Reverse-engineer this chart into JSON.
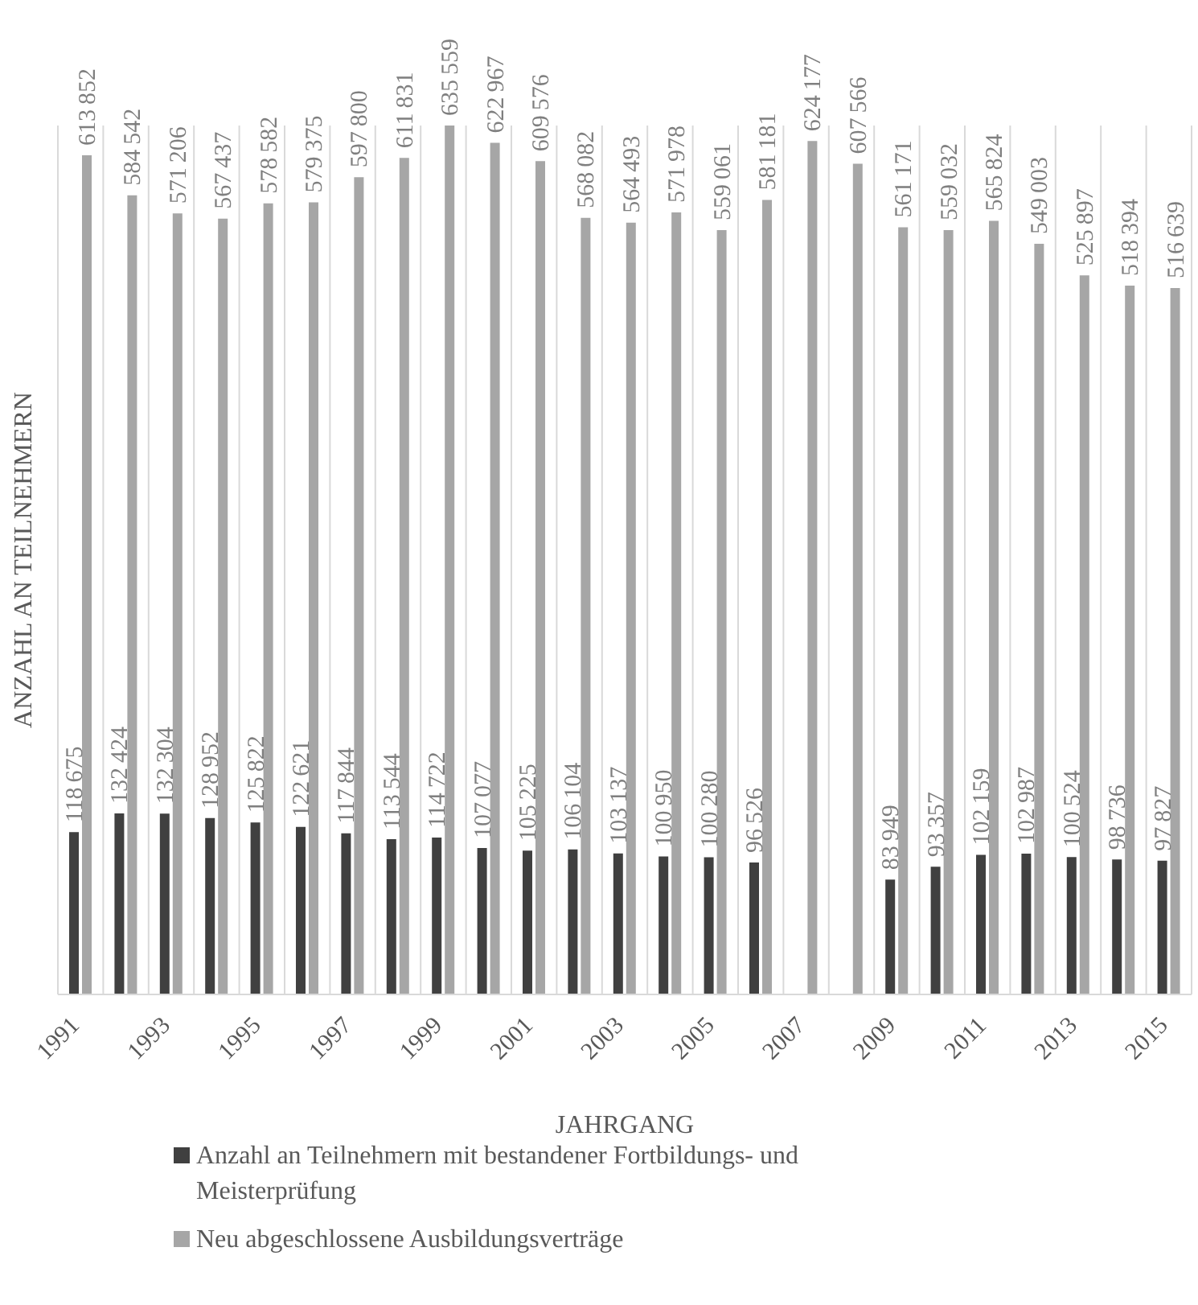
{
  "chart_data": {
    "type": "bar",
    "xlabel": "JAHRGANG",
    "ylabel": "ANZAHL AN TEILNEHMERN",
    "categories": [
      "1991",
      null,
      "1993",
      null,
      "1995",
      null,
      "1997",
      null,
      "1999",
      null,
      "2001",
      null,
      "2003",
      null,
      "2005",
      null,
      "2007",
      null,
      "2009",
      null,
      "2011",
      null,
      "2013",
      null,
      "2015"
    ],
    "series": [
      {
        "name": "Anzahl an Teilnehmern mit bestandener Fortbildungs- und Meisterprüfung",
        "color": "#404040",
        "values": [
          118675,
          132424,
          132304,
          128952,
          125822,
          122621,
          117844,
          113544,
          114722,
          107077,
          105225,
          106104,
          103137,
          100950,
          100280,
          96526,
          null,
          null,
          83949,
          93357,
          102159,
          102987,
          100524,
          98736,
          97827
        ]
      },
      {
        "name": "Neu abgeschlossene Ausbildungsverträge",
        "color": "#a6a6a6",
        "values": [
          613852,
          584542,
          571206,
          567437,
          578582,
          579375,
          597800,
          611831,
          635559,
          622967,
          609576,
          568082,
          564493,
          571978,
          559061,
          581181,
          624177,
          607566,
          561171,
          559032,
          565824,
          549003,
          525897,
          518394,
          516639
        ]
      }
    ],
    "data_labels": true,
    "grid": "x",
    "legend": "bottom"
  }
}
